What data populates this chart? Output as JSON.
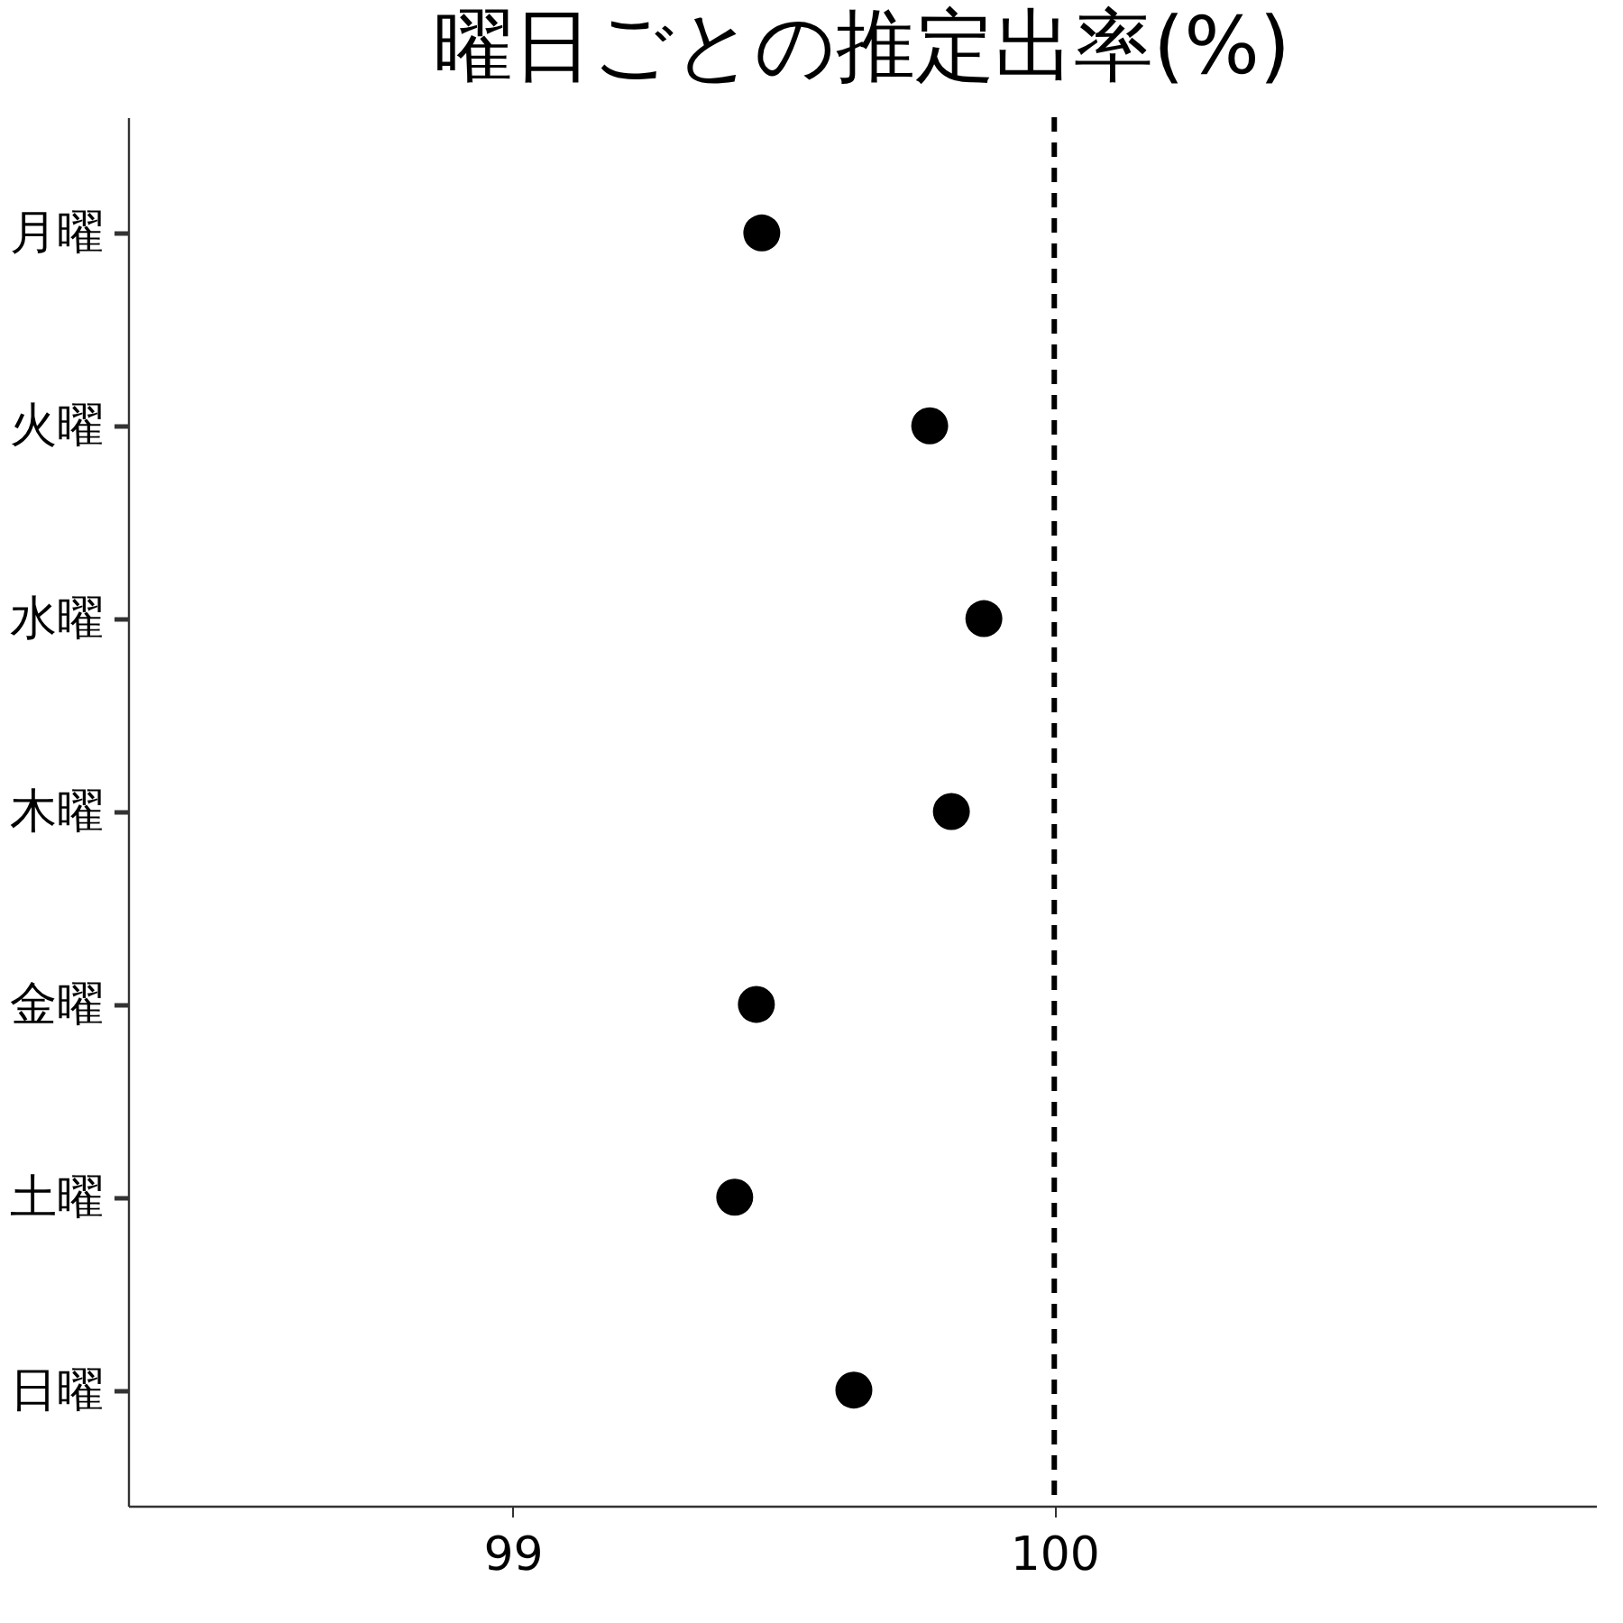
{
  "chart_data": {
    "type": "scatter",
    "title": "曜日ごとの推定出率(%)",
    "categories": [
      "月曜",
      "火曜",
      "水曜",
      "木曜",
      "金曜",
      "土曜",
      "日曜"
    ],
    "orientation": "horizontal",
    "series": [
      {
        "color": "#000000",
        "values": [
          99.46,
          99.77,
          99.87,
          99.81,
          99.45,
          99.41,
          99.63
        ]
      }
    ],
    "xlim": [
      98.29,
      101.0
    ],
    "xticks": [
      99,
      100
    ],
    "ref_lines": [
      {
        "axis": "x",
        "value": 100,
        "color": "#000000",
        "line_style": "dashed"
      }
    ],
    "marker": "circle",
    "grid": false
  }
}
